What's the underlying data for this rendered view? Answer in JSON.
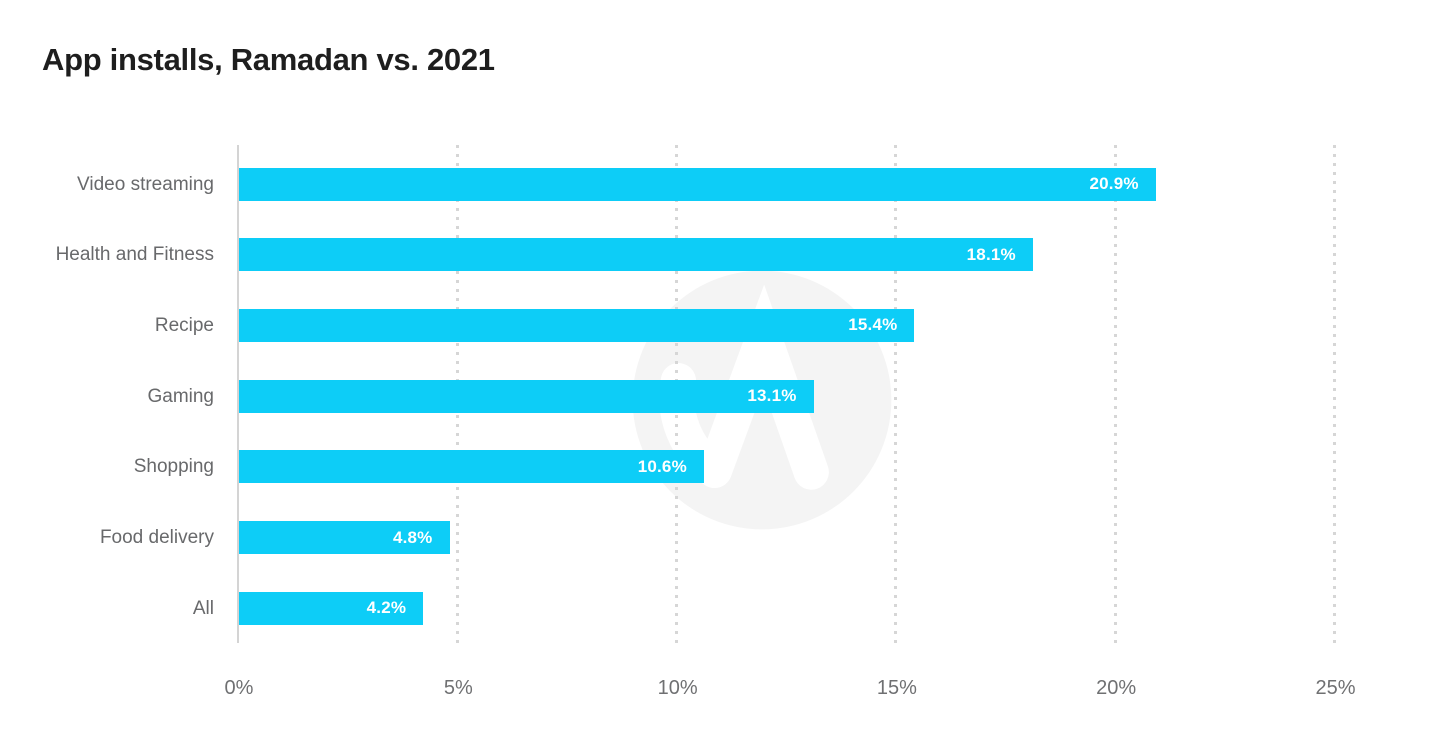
{
  "header": {
    "title": "App installs, Ramadan vs. 2021"
  },
  "watermark": {
    "name": "appsflyer-logo",
    "circle_color": "#f4f4f4",
    "glyph_color": "#ffffff"
  },
  "colors": {
    "bar": "#0dcdf7",
    "title_text": "#1e1e1e",
    "category_text": "#68696b",
    "tick_text": "#6f7072",
    "value_text": "#ffffff",
    "gridline": "#d6d6d6",
    "axis_line": "#d4d4d4"
  },
  "chart_data": {
    "type": "bar",
    "orientation": "horizontal",
    "title": "App installs, Ramadan vs. 2021",
    "categories": [
      "Video streaming",
      "Health and Fitness",
      "Recipe",
      "Gaming",
      "Shopping",
      "Food delivery",
      "All"
    ],
    "values": [
      20.9,
      18.1,
      15.4,
      13.1,
      10.6,
      4.8,
      4.2
    ],
    "value_labels": [
      "20.9%",
      "18.1%",
      "15.4%",
      "13.1%",
      "10.6%",
      "4.8%",
      "4.2%"
    ],
    "x_ticks": [
      "0%",
      "5%",
      "10%",
      "15%",
      "20%",
      "25%"
    ],
    "x_tick_values": [
      0,
      5,
      10,
      15,
      20,
      25
    ],
    "xlim": [
      0,
      25
    ],
    "xlabel": "",
    "ylabel": "",
    "grid": "vertical-dotted",
    "legend": "none"
  }
}
